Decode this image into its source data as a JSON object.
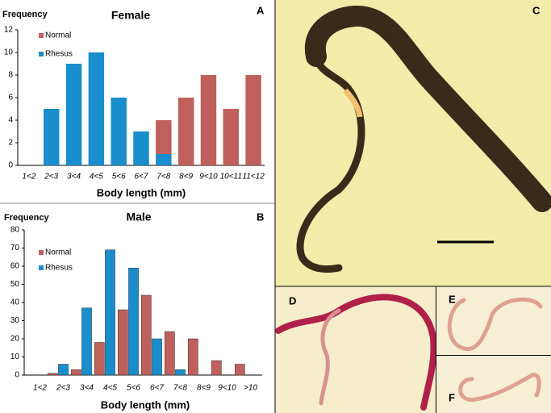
{
  "chart_data": [
    {
      "type": "bar",
      "barmode": "stack",
      "panel_label": "A",
      "title": "Female",
      "ylabel": "Frequency",
      "xlabel": "Body length (mm)",
      "categories": [
        "1<2",
        "2<3",
        "3<4",
        "4<5",
        "5<6",
        "6<7",
        "7<8",
        "8<9",
        "9<10",
        "10<11",
        "11<12"
      ],
      "series": [
        {
          "name": "Rhesus",
          "color": "#1a8dcc",
          "values": [
            0,
            5,
            9,
            10,
            6,
            3,
            1,
            0,
            0,
            0,
            0
          ]
        },
        {
          "name": "Normal",
          "color": "#c0605c",
          "values": [
            0,
            0,
            0,
            0,
            0,
            0,
            3,
            6,
            8,
            5,
            8
          ]
        }
      ],
      "legend_order": [
        "Normal",
        "Rhesus"
      ],
      "ylim": [
        0,
        12
      ],
      "yticks": [
        0,
        2,
        4,
        6,
        8,
        10,
        12
      ],
      "grid": false
    },
    {
      "type": "bar",
      "barmode": "group",
      "panel_label": "B",
      "title": "Male",
      "ylabel": "Frequency",
      "xlabel": "Body length (mm)",
      "categories": [
        "1<2",
        "2<3",
        "3<4",
        "4<5",
        "5<6",
        "6<7",
        "7<8",
        "8<9",
        "9<10",
        ">10"
      ],
      "series": [
        {
          "name": "Normal",
          "color": "#c0605c",
          "values": [
            0,
            1,
            3,
            18,
            36,
            44,
            24,
            20,
            8,
            6
          ]
        },
        {
          "name": "Rhesus",
          "color": "#1a8dcc",
          "values": [
            0,
            6,
            37,
            69,
            59,
            20,
            3,
            0,
            0,
            0
          ]
        }
      ],
      "legend_order": [
        "Normal",
        "Rhesus"
      ],
      "ylim": [
        0,
        80
      ],
      "yticks": [
        0,
        10,
        20,
        30,
        40,
        50,
        60,
        70,
        80
      ],
      "grid": false
    }
  ],
  "photo_labels": [
    "C",
    "D",
    "E",
    "F"
  ]
}
